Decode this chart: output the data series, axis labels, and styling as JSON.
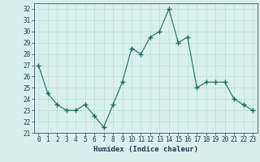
{
  "x": [
    0,
    1,
    2,
    3,
    4,
    5,
    6,
    7,
    8,
    9,
    10,
    11,
    12,
    13,
    14,
    15,
    16,
    17,
    18,
    19,
    20,
    21,
    22,
    23
  ],
  "y": [
    27,
    24.5,
    23.5,
    23,
    23,
    23.5,
    22.5,
    21.5,
    23.5,
    25.5,
    28.5,
    28,
    29.5,
    30,
    32,
    29,
    29.5,
    25,
    25.5,
    25.5,
    25.5,
    24,
    23.5,
    23
  ],
  "xlabel": "Humidex (Indice chaleur)",
  "ylim": [
    21,
    32.5
  ],
  "xlim": [
    -0.5,
    23.5
  ],
  "yticks": [
    21,
    22,
    23,
    24,
    25,
    26,
    27,
    28,
    29,
    30,
    31,
    32
  ],
  "xticks": [
    0,
    1,
    2,
    3,
    4,
    5,
    6,
    7,
    8,
    9,
    10,
    11,
    12,
    13,
    14,
    15,
    16,
    17,
    18,
    19,
    20,
    21,
    22,
    23
  ],
  "line_color": "#1f6b5c",
  "marker": "+",
  "bg_color": "#d8f0eb",
  "grid_color": "#b8ddd6",
  "label_color": "#1a3a4a",
  "tick_color": "#1a3a4a",
  "tick_fontsize": 5.5,
  "xlabel_fontsize": 6.5
}
